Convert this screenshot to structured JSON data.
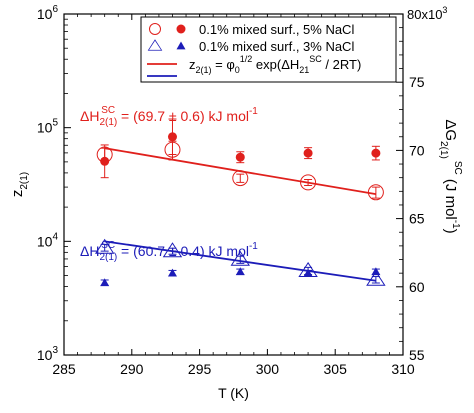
{
  "colors": {
    "red": "#e0201c",
    "blue": "#1c1cb8",
    "axis": "#000000"
  },
  "chart_data": {
    "type": "scatter",
    "xlabel": "T (K)",
    "ylabel_left": "z",
    "ylabel_left_sub": "2(1)",
    "ylabel_right_main": "ΔG",
    "ylabel_right_sub": "2(1)",
    "ylabel_right_sup": "SC",
    "ylabel_right_unit": "(J mol",
    "ylabel_right_unit_sup": "-1",
    "ylabel_right_close": ")",
    "xlim": [
      285,
      310
    ],
    "ylim_left": [
      1000,
      1000000
    ],
    "yscale_left": "log",
    "ylim_right": [
      55000,
      80000
    ],
    "x_ticks": [
      285,
      290,
      295,
      300,
      305,
      310
    ],
    "x_tick_labels": [
      "285",
      "290",
      "295",
      "300",
      "305",
      "310"
    ],
    "y_left_ticks": [
      1000,
      10000,
      100000,
      1000000
    ],
    "y_left_tick_base": "10",
    "y_left_tick_exps": [
      "3",
      "4",
      "5",
      "6"
    ],
    "y_right_ticks": [
      55000,
      60000,
      65000,
      70000,
      75000
    ],
    "y_right_tick_labels": [
      "55",
      "60",
      "65",
      "70",
      "75"
    ],
    "y_right_top_label": "80x10",
    "y_right_top_label_sup": "3",
    "legend": {
      "position": "top-right",
      "entries": [
        {
          "text": "0.1% mixed surf., 5% NaCl",
          "markers": [
            "open-circle",
            "filled-circle"
          ],
          "color": "red"
        },
        {
          "text": "0.1% mixed surf., 3% NaCl",
          "markers": [
            "open-triangle",
            "filled-triangle"
          ],
          "color": "blue"
        },
        {
          "text": "z",
          "sub": "2(1)",
          "rest": " = φ",
          "sub2": "0",
          "sup2": "1/2",
          "rest2": " exp(ΔH",
          "sub3": "21",
          "sup3": "SC",
          "rest3": " / 2RT)",
          "line": "red"
        },
        {
          "line": "blue"
        }
      ]
    },
    "annotations": [
      {
        "color": "red",
        "pre": "ΔH",
        "sub": "2(1)",
        "sup": "SC",
        "text": " = (69.7 ± 0.6) kJ mol",
        "sup2": "-1"
      },
      {
        "color": "blue",
        "pre": "ΔH",
        "sub": "2(1)",
        "sup": "SC",
        "text": " = (60.7 ± 0.4) kJ mol",
        "sup2": "-1"
      }
    ],
    "series": [
      {
        "name": "0.1% mixed surf., 5% NaCl",
        "axis": "left",
        "marker": "open-circle",
        "color": "red",
        "x": [
          288,
          293,
          298,
          303,
          308
        ],
        "y": [
          58000,
          64000,
          36000,
          33000,
          27000
        ],
        "err": [
          8000,
          12000,
          3000,
          2000,
          3000
        ]
      },
      {
        "name": "0.1% mixed surf., 5% NaCl",
        "axis": "right",
        "marker": "filled-circle",
        "color": "red",
        "x": [
          288,
          293,
          298,
          303,
          308
        ],
        "y": [
          69200,
          71000,
          69500,
          69800,
          69800
        ],
        "err": [
          1200,
          1300,
          400,
          400,
          500
        ]
      },
      {
        "name": "0.1% mixed surf., 3% NaCl",
        "axis": "left",
        "marker": "open-triangle",
        "color": "blue",
        "x": [
          288,
          293,
          298,
          303,
          308
        ],
        "y": [
          8800,
          8200,
          6900,
          5500,
          4600
        ],
        "err": [
          600,
          500,
          500,
          400,
          300
        ]
      },
      {
        "name": "0.1% mixed surf., 3% NaCl",
        "axis": "right",
        "marker": "filled-triangle",
        "color": "blue",
        "x": [
          288,
          293,
          298,
          303,
          308
        ],
        "y": [
          60300,
          61000,
          61100,
          61000,
          61100
        ],
        "err": [
          200,
          200,
          200,
          200,
          200
        ]
      },
      {
        "name": "fit 5% NaCl",
        "axis": "left",
        "marker": "line",
        "color": "red",
        "x": [
          288,
          308
        ],
        "y": [
          66000,
          26000
        ]
      },
      {
        "name": "fit 3% NaCl",
        "axis": "left",
        "marker": "line",
        "color": "blue",
        "x": [
          288,
          308
        ],
        "y": [
          10000,
          4500
        ]
      }
    ]
  }
}
